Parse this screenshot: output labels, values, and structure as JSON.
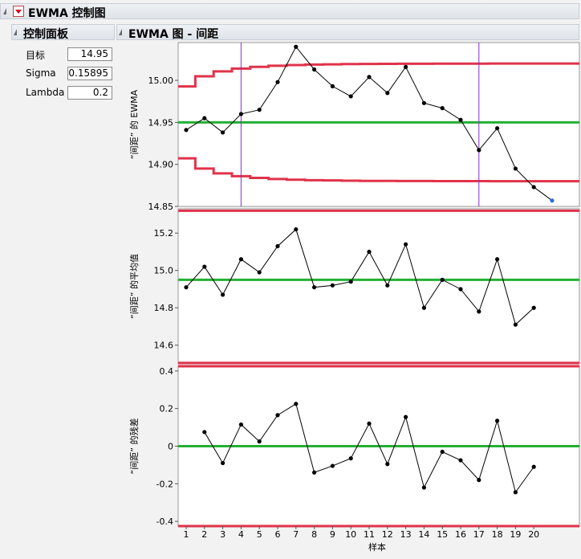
{
  "report": {
    "title": "EWMA 控制图"
  },
  "control_panel": {
    "title": "控制面板",
    "fields": [
      {
        "label": "目标",
        "value": "14.95"
      },
      {
        "label": "Sigma",
        "value": "0.15895"
      },
      {
        "label": "Lambda",
        "value": "0.2"
      }
    ]
  },
  "chart_panel": {
    "title": "EWMA 图 - 间距"
  },
  "colors": {
    "limits": "#e0334a",
    "center": "#22b033",
    "data": "#000000",
    "vline": "#8a2ccc",
    "highlight": "#2a6ee0"
  },
  "chart_data": [
    {
      "type": "line",
      "ylabel": "“间距” 的 EWMA",
      "ylim": [
        14.85,
        15.045
      ],
      "yticks": [
        14.85,
        14.9,
        14.95,
        15.0
      ],
      "ytick_labels": [
        "14.85",
        "14.90",
        "14.95",
        "15.00"
      ],
      "x": [
        1,
        2,
        3,
        4,
        5,
        6,
        7,
        8,
        9,
        10,
        11,
        12,
        13,
        14,
        15,
        16,
        17,
        18,
        19,
        20,
        21
      ],
      "values": [
        14.941,
        14.955,
        14.938,
        14.96,
        14.965,
        14.998,
        15.04,
        15.013,
        14.993,
        14.981,
        15.004,
        14.985,
        15.016,
        14.973,
        14.967,
        14.953,
        14.917,
        14.943,
        14.895,
        14.873,
        14.857
      ],
      "center": 14.95,
      "ucl": [
        14.9928,
        15.0049,
        15.0107,
        15.014,
        15.0161,
        15.0174,
        15.0182,
        15.0188,
        15.0191,
        15.0194,
        15.0196,
        15.0197,
        15.0198,
        15.0198,
        15.0199,
        15.0199,
        15.0199,
        15.02,
        15.02,
        15.02,
        15.02
      ],
      "lcl": [
        14.9072,
        14.8951,
        14.8893,
        14.886,
        14.8839,
        14.8826,
        14.8818,
        14.8812,
        14.8809,
        14.8806,
        14.8804,
        14.8803,
        14.8802,
        14.8802,
        14.8801,
        14.8801,
        14.8801,
        14.88,
        14.88,
        14.88,
        14.88
      ],
      "vlines": [
        4,
        17
      ],
      "highlight_x": 21
    },
    {
      "type": "line",
      "ylabel": "“间距” 的平均值",
      "ylim": [
        14.5,
        15.33
      ],
      "yticks": [
        14.6,
        14.8,
        15.0,
        15.2
      ],
      "ytick_labels": [
        "14.6",
        "14.8",
        "15.0",
        "15.2"
      ],
      "x": [
        1,
        2,
        3,
        4,
        5,
        6,
        7,
        8,
        9,
        10,
        11,
        12,
        13,
        14,
        15,
        16,
        17,
        18,
        19,
        20
      ],
      "values": [
        14.91,
        15.02,
        14.87,
        15.06,
        14.99,
        15.13,
        15.22,
        14.91,
        14.92,
        14.94,
        15.1,
        14.92,
        15.14,
        14.8,
        14.95,
        14.9,
        14.78,
        15.06,
        14.71,
        14.8
      ],
      "center": 14.95,
      "ucl": 15.32,
      "lcl": 14.505
    },
    {
      "type": "line",
      "ylabel": "“间距” 的残差",
      "xlabel": "样本",
      "ylim": [
        -0.425,
        0.425
      ],
      "yticks": [
        -0.4,
        -0.2,
        0,
        0.2,
        0.4
      ],
      "ytick_labels": [
        "-0.4",
        "-0.2",
        "0",
        "0.2",
        "0.4"
      ],
      "xticks": [
        1,
        2,
        3,
        4,
        5,
        6,
        7,
        8,
        9,
        10,
        11,
        12,
        13,
        14,
        15,
        16,
        17,
        18,
        19,
        20
      ],
      "x": [
        2,
        3,
        4,
        5,
        6,
        7,
        8,
        9,
        10,
        11,
        12,
        13,
        14,
        15,
        16,
        17,
        18,
        19,
        20
      ],
      "values": [
        0.075,
        -0.09,
        0.115,
        0.025,
        0.165,
        0.225,
        -0.14,
        -0.105,
        -0.065,
        0.12,
        -0.095,
        0.155,
        -0.22,
        -0.03,
        -0.075,
        -0.18,
        0.135,
        -0.245,
        -0.11
      ],
      "center": 0,
      "ucl": 0.425,
      "lcl": -0.425
    }
  ]
}
